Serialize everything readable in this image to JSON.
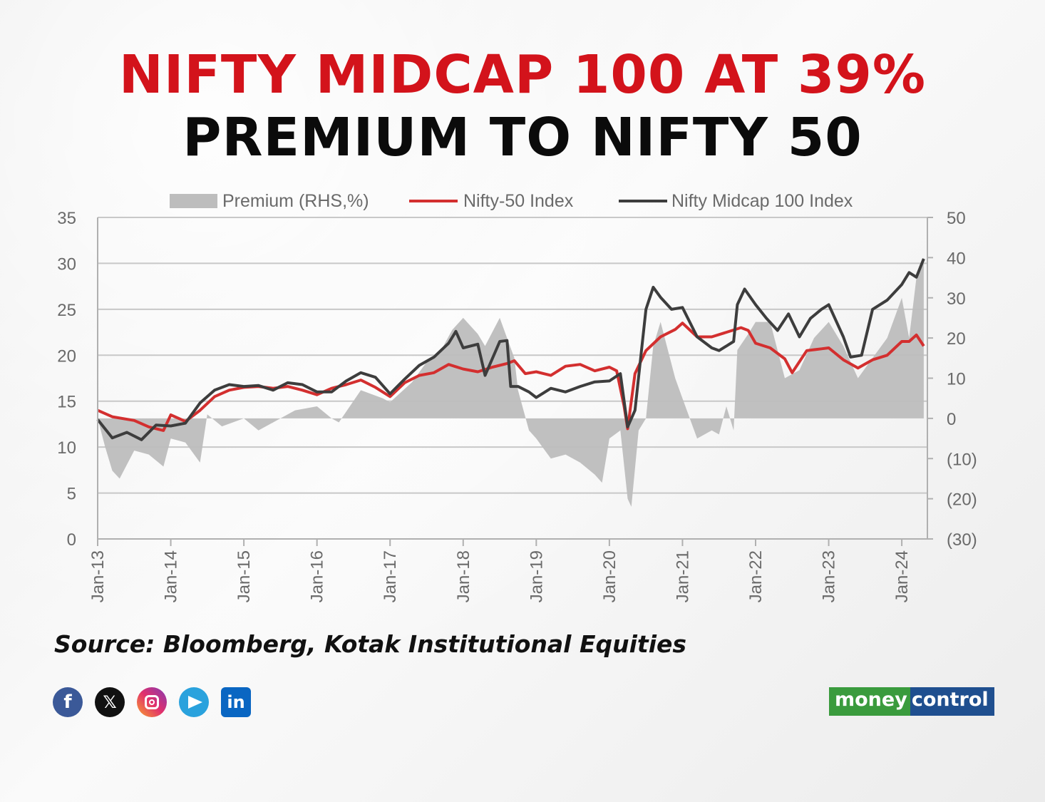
{
  "headline": {
    "line1": "NIFTY MIDCAP 100 AT 39%",
    "line2": "PREMIUM TO NIFTY 50"
  },
  "source": "Source: Bloomberg, Kotak Institutional Equities",
  "social_icons": [
    "facebook-icon",
    "x-icon",
    "instagram-icon",
    "telegram-icon",
    "linkedin-icon"
  ],
  "brand": {
    "part1": "money",
    "part2": "control"
  },
  "colors": {
    "title_red": "#d3131b",
    "nifty50": "#d32f2f",
    "midcap": "#3d3d3d",
    "premium": "#bdbdbd"
  },
  "chart_data": {
    "type": "line",
    "title": "",
    "xlabel": "",
    "ylabel": "",
    "y_left_range": [
      0,
      35
    ],
    "y_left_ticks": [
      "0",
      "5",
      "10",
      "15",
      "20",
      "25",
      "30",
      "35"
    ],
    "y_right_range": [
      -30,
      50
    ],
    "y_right_ticks": [
      "(30)",
      "(20)",
      "(10)",
      "0",
      "10",
      "20",
      "30",
      "40",
      "50"
    ],
    "x_range": [
      2013.0,
      2024.35
    ],
    "x_ticks": [
      "Jan-13",
      "Jan-14",
      "Jan-15",
      "Jan-16",
      "Jan-17",
      "Jan-18",
      "Jan-19",
      "Jan-20",
      "Jan-21",
      "Jan-22",
      "Jan-23",
      "Jan-24"
    ],
    "grid": "horizontal",
    "legend_position": "top",
    "series": [
      {
        "name": "Premium (RHS,%)",
        "kind": "area",
        "axis": "right",
        "color": "#bdbdbd",
        "x": [
          2013.0,
          2013.1,
          2013.2,
          2013.3,
          2013.5,
          2013.7,
          2013.9,
          2014.0,
          2014.2,
          2014.4,
          2014.5,
          2014.7,
          2015.0,
          2015.2,
          2015.5,
          2015.7,
          2016.0,
          2016.2,
          2016.3,
          2016.6,
          2016.9,
          2017.0,
          2017.3,
          2017.5,
          2017.7,
          2017.85,
          2018.0,
          2018.2,
          2018.3,
          2018.5,
          2018.6,
          2018.7,
          2018.75,
          2018.9,
          2019.0,
          2019.2,
          2019.4,
          2019.6,
          2019.8,
          2019.9,
          2020.0,
          2020.15,
          2020.25,
          2020.3,
          2020.4,
          2020.5,
          2020.6,
          2020.7,
          2020.9,
          2021.0,
          2021.2,
          2021.4,
          2021.5,
          2021.6,
          2021.7,
          2021.75,
          2021.9,
          2022.0,
          2022.2,
          2022.4,
          2022.6,
          2022.8,
          2023.0,
          2023.2,
          2023.4,
          2023.6,
          2023.8,
          2024.0,
          2024.1,
          2024.2,
          2024.3
        ],
        "values": [
          0,
          -7,
          -13,
          -15,
          -8,
          -9,
          -12,
          -5,
          -6,
          -11,
          1,
          -2,
          0,
          -3,
          0,
          2,
          3,
          0,
          -1,
          7,
          5,
          4,
          9,
          14,
          17,
          22,
          25,
          21,
          18,
          25,
          20,
          15,
          7,
          -3,
          -5,
          -10,
          -9,
          -11,
          -14,
          -16,
          -5,
          -3,
          -20,
          -22,
          -3,
          0,
          18,
          24,
          10,
          5,
          -5,
          -3,
          -4,
          3,
          -3,
          17,
          21,
          24,
          24,
          10,
          12,
          20,
          24,
          18,
          10,
          15,
          20,
          30,
          20,
          35,
          40
        ]
      },
      {
        "name": "Nifty-50 Index",
        "kind": "line",
        "axis": "left",
        "color": "#d32f2f",
        "x": [
          2013.0,
          2013.2,
          2013.5,
          2013.7,
          2013.9,
          2014.0,
          2014.2,
          2014.4,
          2014.6,
          2014.8,
          2015.0,
          2015.2,
          2015.4,
          2015.6,
          2015.8,
          2016.0,
          2016.2,
          2016.4,
          2016.6,
          2016.8,
          2017.0,
          2017.2,
          2017.4,
          2017.6,
          2017.8,
          2018.0,
          2018.2,
          2018.4,
          2018.6,
          2018.7,
          2018.85,
          2019.0,
          2019.2,
          2019.4,
          2019.6,
          2019.8,
          2020.0,
          2020.1,
          2020.2,
          2020.25,
          2020.35,
          2020.5,
          2020.7,
          2020.9,
          2021.0,
          2021.2,
          2021.4,
          2021.6,
          2021.8,
          2021.9,
          2022.0,
          2022.2,
          2022.4,
          2022.5,
          2022.7,
          2022.9,
          2023.0,
          2023.2,
          2023.4,
          2023.6,
          2023.8,
          2024.0,
          2024.1,
          2024.2,
          2024.3
        ],
        "values": [
          14,
          13.3,
          12.9,
          12.2,
          11.8,
          13.5,
          12.8,
          14.0,
          15.5,
          16.2,
          16.5,
          16.6,
          16.4,
          16.6,
          16.2,
          15.7,
          16.4,
          16.8,
          17.3,
          16.5,
          15.5,
          17.0,
          17.8,
          18.1,
          19.0,
          18.5,
          18.2,
          18.7,
          19.1,
          19.4,
          18.0,
          18.2,
          17.8,
          18.8,
          19.0,
          18.3,
          18.7,
          18.3,
          14.5,
          12.0,
          18.0,
          20.5,
          22.0,
          22.8,
          23.5,
          22.0,
          22.0,
          22.5,
          23.0,
          22.7,
          21.3,
          20.8,
          19.6,
          18.1,
          20.5,
          20.7,
          20.8,
          19.5,
          18.6,
          19.5,
          20.0,
          21.5,
          21.5,
          22.2,
          21.0
        ]
      },
      {
        "name": "Nifty Midcap 100 Index",
        "kind": "line",
        "axis": "left",
        "color": "#3d3d3d",
        "x": [
          2013.0,
          2013.2,
          2013.4,
          2013.6,
          2013.8,
          2014.0,
          2014.2,
          2014.4,
          2014.6,
          2014.8,
          2015.0,
          2015.2,
          2015.4,
          2015.6,
          2015.8,
          2016.0,
          2016.2,
          2016.4,
          2016.6,
          2016.8,
          2017.0,
          2017.2,
          2017.4,
          2017.6,
          2017.8,
          2017.9,
          2018.0,
          2018.2,
          2018.3,
          2018.5,
          2018.6,
          2018.65,
          2018.75,
          2018.9,
          2019.0,
          2019.2,
          2019.4,
          2019.6,
          2019.8,
          2020.0,
          2020.15,
          2020.25,
          2020.35,
          2020.5,
          2020.6,
          2020.7,
          2020.85,
          2021.0,
          2021.2,
          2021.4,
          2021.5,
          2021.6,
          2021.7,
          2021.75,
          2021.85,
          2022.0,
          2022.15,
          2022.3,
          2022.45,
          2022.6,
          2022.75,
          2022.9,
          2023.0,
          2023.2,
          2023.3,
          2023.45,
          2023.6,
          2023.8,
          2024.0,
          2024.1,
          2024.2,
          2024.3
        ],
        "values": [
          13,
          11.0,
          11.6,
          10.8,
          12.4,
          12.3,
          12.6,
          14.8,
          16.2,
          16.8,
          16.6,
          16.7,
          16.2,
          17.0,
          16.8,
          16.0,
          16.0,
          17.2,
          18.1,
          17.6,
          15.8,
          17.4,
          18.9,
          19.8,
          21.3,
          22.6,
          20.8,
          21.2,
          17.8,
          21.5,
          21.6,
          16.6,
          16.6,
          16.0,
          15.4,
          16.4,
          16.0,
          16.6,
          17.1,
          17.2,
          18.0,
          12.2,
          14.0,
          25.0,
          27.4,
          26.3,
          25.0,
          25.2,
          22.0,
          20.8,
          20.5,
          21.0,
          21.5,
          25.5,
          27.2,
          25.5,
          24.0,
          22.7,
          24.5,
          22.0,
          24.0,
          25.0,
          25.5,
          22.0,
          19.8,
          20.0,
          25.0,
          26.0,
          27.7,
          29.0,
          28.5,
          30.5
        ]
      }
    ]
  }
}
